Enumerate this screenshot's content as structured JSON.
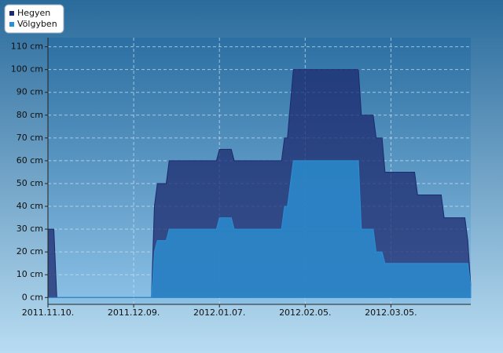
{
  "chart_data": {
    "type": "area",
    "x": [
      "2011-11-10",
      "2011-11-12",
      "2011-11-13",
      "2011-12-15",
      "2011-12-16",
      "2011-12-17",
      "2011-12-20",
      "2011-12-21",
      "2012-01-06",
      "2012-01-07",
      "2012-01-11",
      "2012-01-12",
      "2012-01-28",
      "2012-01-29",
      "2012-01-30",
      "2012-02-01",
      "2012-02-23",
      "2012-02-24",
      "2012-02-28",
      "2012-02-29",
      "2012-03-02",
      "2012-03-03",
      "2012-03-13",
      "2012-03-14",
      "2012-03-22",
      "2012-03-23",
      "2012-03-30",
      "2012-03-31",
      "2012-04-01"
    ],
    "series": [
      {
        "name": "Hegyen",
        "color": "#1c2a6e",
        "values": [
          30,
          30,
          0,
          0,
          40,
          50,
          50,
          60,
          60,
          65,
          65,
          60,
          60,
          70,
          70,
          100,
          100,
          80,
          80,
          70,
          70,
          55,
          55,
          45,
          45,
          35,
          35,
          25,
          5
        ]
      },
      {
        "name": "Völgyben",
        "color": "#2a90d2",
        "values": [
          0,
          0,
          0,
          0,
          20,
          25,
          25,
          30,
          30,
          35,
          35,
          30,
          30,
          40,
          40,
          60,
          60,
          30,
          30,
          20,
          20,
          15,
          15,
          15,
          15,
          15,
          15,
          15,
          5
        ]
      }
    ],
    "xlim": [
      "2011-11-10",
      "2012-04-01"
    ],
    "xticks": [
      {
        "value": "2011-11-10",
        "label": "2011.11.10."
      },
      {
        "value": "2011-12-09",
        "label": "2011.12.09."
      },
      {
        "value": "2012-01-07",
        "label": "2012.01.07."
      },
      {
        "value": "2012-02-05",
        "label": "2012.02.05."
      },
      {
        "value": "2012-03-05",
        "label": "2012.03.05."
      }
    ],
    "ylim": [
      -3,
      114
    ],
    "yticks": [
      {
        "value": 0,
        "label": "0 cm"
      },
      {
        "value": 10,
        "label": "10 cm"
      },
      {
        "value": 20,
        "label": "20 cm"
      },
      {
        "value": 30,
        "label": "30 cm"
      },
      {
        "value": 40,
        "label": "40 cm"
      },
      {
        "value": 50,
        "label": "50 cm"
      },
      {
        "value": 60,
        "label": "60 cm"
      },
      {
        "value": 70,
        "label": "70 cm"
      },
      {
        "value": 80,
        "label": "80 cm"
      },
      {
        "value": 90,
        "label": "90 cm"
      },
      {
        "value": 100,
        "label": "100 cm"
      },
      {
        "value": 110,
        "label": "110 cm"
      }
    ],
    "grid": true,
    "legend": "top-left"
  }
}
